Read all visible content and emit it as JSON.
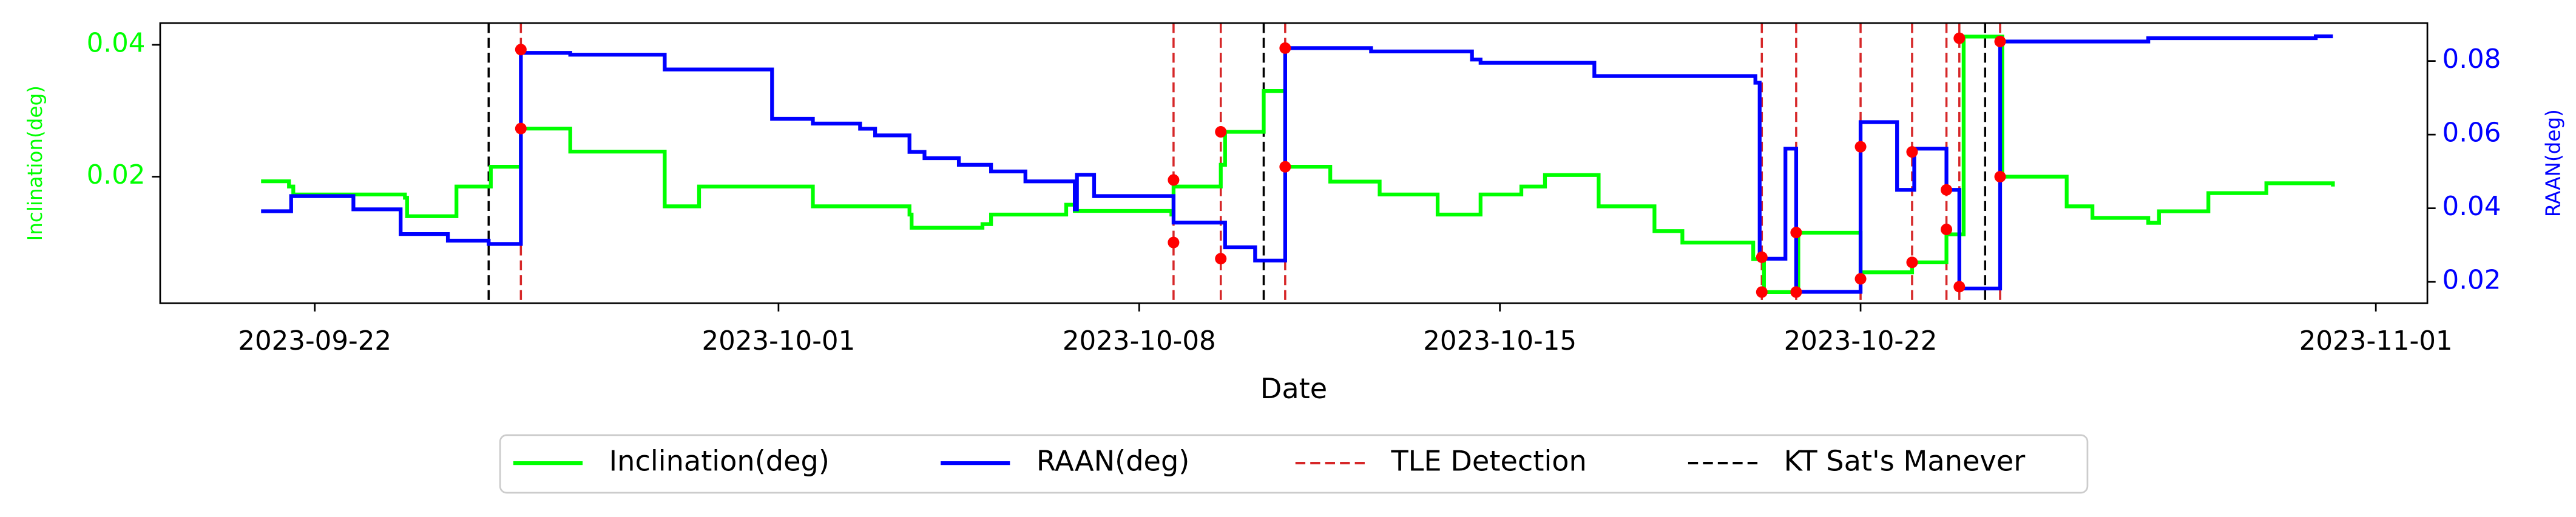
{
  "chart_data": {
    "type": "line",
    "xlabel": "Date",
    "ylabel": "Inclination(deg)",
    "y2label": "RAAN(deg)",
    "xlim": [
      "2023-09-19",
      "2023-11-02"
    ],
    "xticks": [
      "2023-09-22",
      "2023-10-01",
      "2023-10-08",
      "2023-10-15",
      "2023-10-22",
      "2023-11-01"
    ],
    "ylim": [
      0.0008,
      0.0433
    ],
    "yticks": [
      0.02,
      0.04
    ],
    "y2lim": [
      0.0142,
      0.0903
    ],
    "y2ticks": [
      0.02,
      0.04,
      0.06,
      0.08
    ],
    "legend": "lower center",
    "drawstyle": "steps-post",
    "series": [
      {
        "name": "Inclination(deg)",
        "color": "#00ff00",
        "x": [
          "2023-09-20T23:00",
          "2023-09-21T12:00",
          "2023-09-21T14:00",
          "2023-09-23T18:00",
          "2023-09-23T19:00",
          "2023-09-24T18:00",
          "2023-09-25T10:00",
          "2023-09-26T00:00",
          "2023-09-26T23:00",
          "2023-09-28T17:00",
          "2023-09-28T19:00",
          "2023-09-29T11:00",
          "2023-10-01T14:00",
          "2023-10-01T16:00",
          "2023-10-03T13:00",
          "2023-10-03T14:00",
          "2023-10-04T23:00",
          "2023-10-05T03:00",
          "2023-10-06T14:00",
          "2023-10-06T18:00",
          "2023-10-08T15:00",
          "2023-10-08T16:00",
          "2023-10-09T14:00",
          "2023-10-09T16:00",
          "2023-10-10T10:00",
          "2023-10-10T19:00",
          "2023-10-10T20:00",
          "2023-10-11T13:00",
          "2023-10-11T17:00",
          "2023-10-12T16:00",
          "2023-10-13T19:00",
          "2023-10-14T11:00",
          "2023-10-14T15:00",
          "2023-10-15T10:00",
          "2023-10-15T21:00",
          "2023-10-16T21:00",
          "2023-10-16T22:00",
          "2023-10-18T00:00",
          "2023-10-18T13:00",
          "2023-10-19T02:00",
          "2023-10-19T22:00",
          "2023-10-20T02:00",
          "2023-10-20T03:00",
          "2023-10-20T18:00",
          "2023-10-20T19:00",
          "2023-10-21T16:00",
          "2023-10-22T00:00",
          "2023-10-23T00:00",
          "2023-10-23T15:00",
          "2023-10-23T16:00",
          "2023-10-23T22:00",
          "2023-10-24T00:00",
          "2023-10-24T17:00",
          "2023-10-24T18:00",
          "2023-10-25T20:00",
          "2023-10-26T00:00",
          "2023-10-26T12:00",
          "2023-10-27T14:00",
          "2023-10-27T19:00",
          "2023-10-28T18:00",
          "2023-10-29T21:00",
          "2023-10-31T04:00"
        ],
        "values": [
          0.0193,
          0.0185,
          0.0173,
          0.0168,
          0.014,
          0.0185,
          0.0215,
          0.0273,
          0.0238,
          0.0238,
          0.0155,
          0.0185,
          0.0185,
          0.0155,
          0.01425,
          0.01225,
          0.0128,
          0.01425,
          0.01575,
          0.0148,
          0.01425,
          0.0185,
          0.0218,
          0.0268,
          0.033,
          0.033,
          0.0215,
          0.0215,
          0.01925,
          0.0173,
          0.01425,
          0.01425,
          0.0173,
          0.0185,
          0.02025,
          0.02025,
          0.0155,
          0.01175,
          0.01,
          0.01,
          0.0075,
          0.0075,
          0.0025,
          0.0025,
          0.0115,
          0.0115,
          0.0055,
          0.007,
          0.007,
          0.01125,
          0.01125,
          0.04125,
          0.04125,
          0.02,
          0.02,
          0.0155,
          0.01375,
          0.013,
          0.01475,
          0.0175,
          0.019,
          0.0185
        ]
      },
      {
        "name": "RAAN(deg)",
        "color": "#0000ff",
        "axis": "y2",
        "x": [
          "2023-09-20T23:00",
          "2023-09-21T12:00",
          "2023-09-21T13:00",
          "2023-09-22T18:00",
          "2023-09-23T16:00",
          "2023-09-24T14:00",
          "2023-09-25T09:00",
          "2023-09-25T23:00",
          "2023-09-26T00:00",
          "2023-09-26T23:00",
          "2023-09-28T17:00",
          "2023-09-28T19:00",
          "2023-09-30T19:00",
          "2023-09-30T21:00",
          "2023-10-01T14:00",
          "2023-10-01T16:00",
          "2023-10-02T14:00",
          "2023-10-02T21:00",
          "2023-10-03T13:00",
          "2023-10-03T20:00",
          "2023-10-04T12:00",
          "2023-10-05T03:00",
          "2023-10-05T19:00",
          "2023-10-06T16:00",
          "2023-10-06T18:00",
          "2023-10-06T19:00",
          "2023-10-07T01:00",
          "2023-10-07T03:00",
          "2023-10-08T00:00",
          "2023-10-08T16:00",
          "2023-10-09T14:00",
          "2023-10-09T16:00",
          "2023-10-10T06:00",
          "2023-10-10T19:00",
          "2023-10-10T20:00",
          "2023-10-12T12:00",
          "2023-10-14T11:00",
          "2023-10-14T15:00",
          "2023-10-16T17:00",
          "2023-10-16T20:00",
          "2023-10-18T00:00",
          "2023-10-19T23:00",
          "2023-10-20T01:00",
          "2023-10-20T12:00",
          "2023-10-20T13:00",
          "2023-10-20T16:00",
          "2023-10-20T18:00",
          "2023-10-21T20:00",
          "2023-10-22T00:00",
          "2023-10-22T15:00",
          "2023-10-22T17:00",
          "2023-10-22T23:00",
          "2023-10-23T01:00",
          "2023-10-23T14:00",
          "2023-10-23T16:00",
          "2023-10-23T21:00",
          "2023-10-23T22:00",
          "2023-10-24T16:00",
          "2023-10-24T17:00",
          "2023-10-27T14:00",
          "2023-10-30T20:00",
          "2023-10-31T04:00"
        ],
        "values": [
          0.0392,
          0.0392,
          0.0433,
          0.0397,
          0.033,
          0.0312,
          0.0303,
          0.0303,
          0.0822,
          0.0817,
          0.0817,
          0.0777,
          0.0777,
          0.0643,
          0.0643,
          0.063,
          0.0616,
          0.0598,
          0.0553,
          0.0536,
          0.0518,
          0.05,
          0.0473,
          0.0473,
          0.0397,
          0.0491,
          0.0491,
          0.0433,
          0.0433,
          0.0361,
          0.0361,
          0.0294,
          0.0258,
          0.0258,
          0.0835,
          0.0826,
          0.0804,
          0.0795,
          0.0795,
          0.0759,
          0.0759,
          0.0741,
          0.0263,
          0.0263,
          0.0562,
          0.0562,
          0.0173,
          0.0173,
          0.0634,
          0.0634,
          0.045,
          0.045,
          0.0562,
          0.0562,
          0.045,
          0.045,
          0.0182,
          0.0182,
          0.0853,
          0.0862,
          0.0867,
          0.0867
        ]
      }
    ],
    "event_lines": [
      {
        "name": "TLE Detection",
        "color": "#d62728",
        "x": [
          "2023-09-26T00:00",
          "2023-10-08T16:00",
          "2023-10-09T14:00",
          "2023-10-10T20:00",
          "2023-10-20T02:00",
          "2023-10-20T18:00",
          "2023-10-22T00:00",
          "2023-10-23T00:00",
          "2023-10-23T16:00",
          "2023-10-23T22:00",
          "2023-10-24T17:00"
        ]
      },
      {
        "name": "KT Sat's Manever",
        "color": "#000000",
        "x": [
          "2023-09-25T09:00",
          "2023-10-10T10:00",
          "2023-10-24T10:00"
        ]
      }
    ],
    "detection_markers": {
      "color": "#ff0000",
      "x": [
        "2023-09-26T00:00",
        "2023-10-08T16:00",
        "2023-10-09T14:00",
        "2023-10-10T20:00",
        "2023-10-20T02:00",
        "2023-10-20T18:00",
        "2023-10-22T00:00",
        "2023-10-23T00:00",
        "2023-10-23T16:00",
        "2023-10-23T22:00",
        "2023-10-24T17:00"
      ],
      "inclination": [
        0.0273,
        0.0195,
        0.0268,
        0.0215,
        0.0025,
        0.0025,
        0.0045,
        0.007,
        0.012,
        0.041,
        0.02
      ],
      "raan": [
        0.0831,
        0.0307,
        0.0263,
        0.0835,
        0.0267,
        0.0334,
        0.0567,
        0.0553,
        0.045,
        0.0187,
        0.0853
      ]
    }
  }
}
